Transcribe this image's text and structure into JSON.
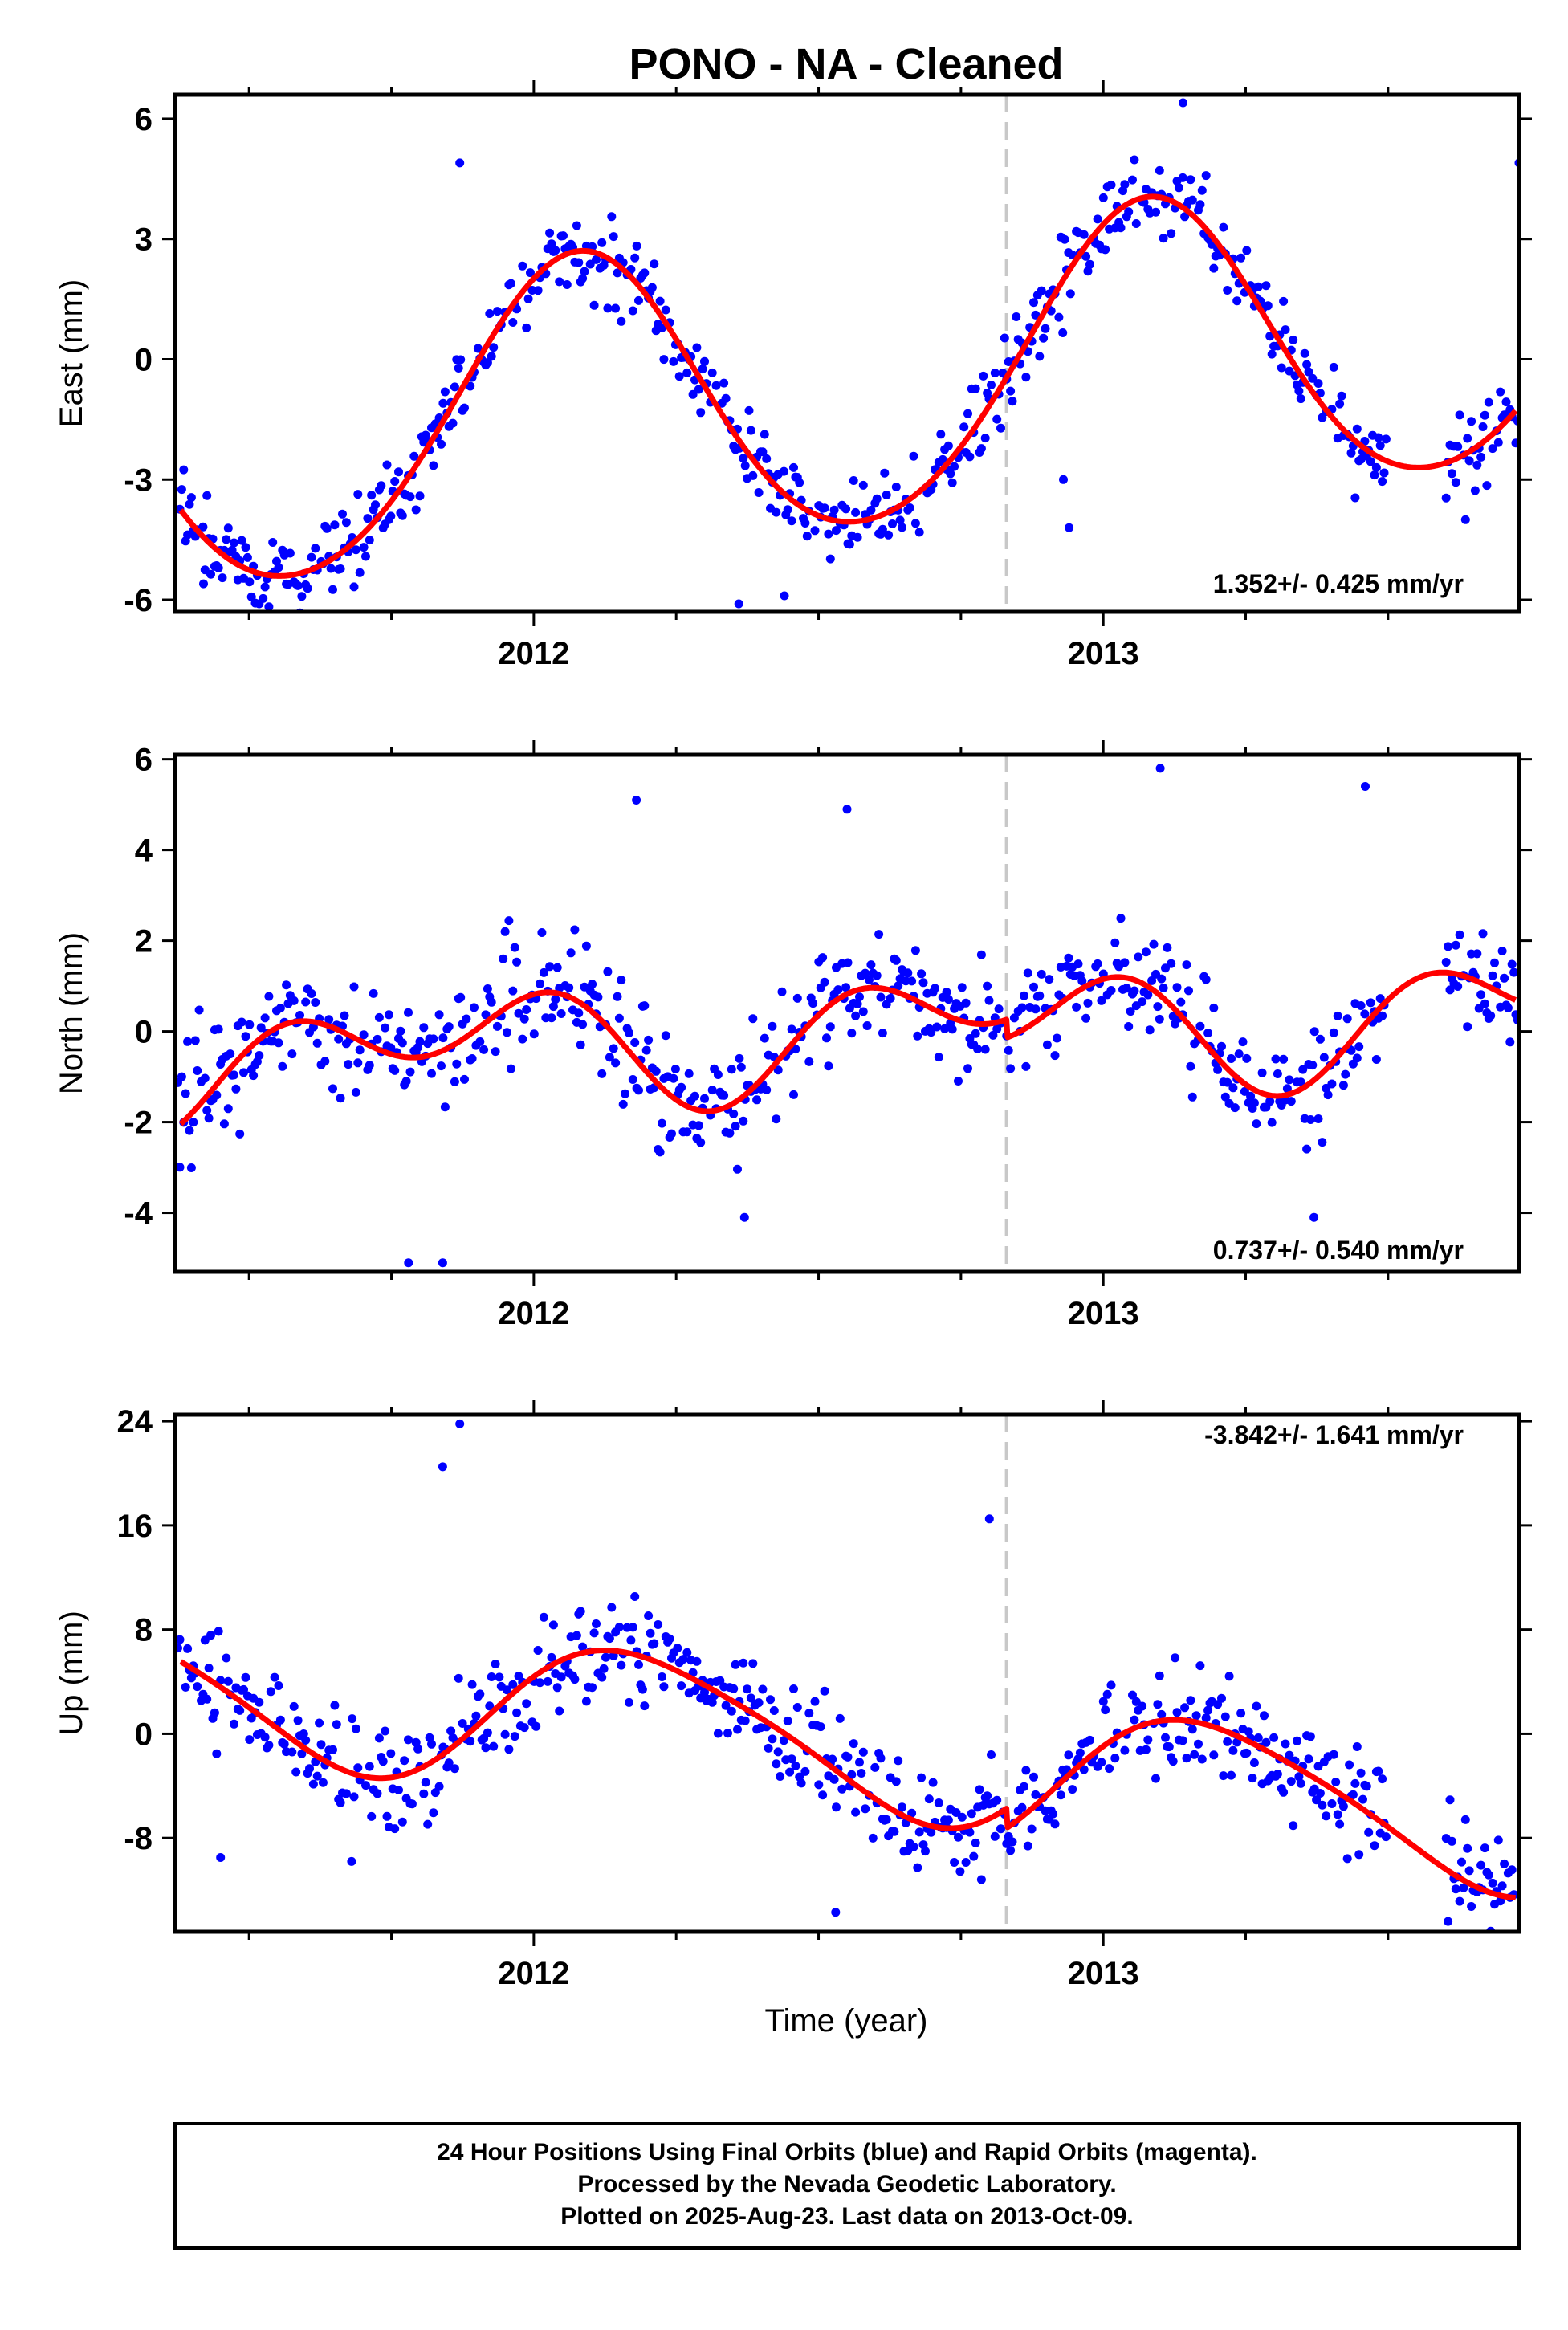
{
  "title": "PONO  - NA - Cleaned",
  "xlabel": "Time (year)",
  "footer": {
    "line1": "24 Hour Positions Using Final Orbits (blue) and Rapid Orbits (magenta).",
    "line2": "Processed by the Nevada Geodetic Laboratory.",
    "line3": "Plotted on 2025-Aug-23. Last data on 2013-Oct-09."
  },
  "colors": {
    "points": "#0000ff",
    "fit": "#ff0000",
    "break_line": "#c8c8c8"
  },
  "chart_data": [
    {
      "type": "scatter",
      "panel": "east",
      "ylabel": "East (mm)",
      "rate_text": "1.352+/- 0.425 mm/yr",
      "xlim": [
        2011.37,
        2013.73
      ],
      "ylim": [
        -6.3,
        6.6
      ],
      "yticks": [
        "6",
        "3",
        "0",
        "-3",
        "-6"
      ],
      "ytick_values": [
        6,
        3,
        0,
        -3,
        -6
      ],
      "xticks": [
        "2012",
        "2013"
      ],
      "xtick_values": [
        2012,
        2013
      ],
      "break_x": 2012.83,
      "fit": {
        "offset": -1.4,
        "rate": 1.352,
        "amp1": 3.7,
        "phase1": 1.1,
        "amp2": 0.3,
        "phase2": 0.4,
        "jump": 0
      },
      "noise": 0.9,
      "outliers": [
        [
          2011.87,
          4.9
        ],
        [
          2013.14,
          6.4
        ],
        [
          2013.73,
          4.9
        ],
        [
          2012.94,
          -4.2
        ],
        [
          2012.93,
          -3.0
        ],
        [
          2012.44,
          -5.9
        ],
        [
          2012.36,
          -6.1
        ],
        [
          2011.42,
          -5.6
        ]
      ]
    },
    {
      "type": "scatter",
      "panel": "north",
      "ylabel": "North (mm)",
      "rate_text": "0.737+/- 0.540 mm/yr",
      "xlim": [
        2011.37,
        2013.73
      ],
      "ylim": [
        -5.3,
        6.1
      ],
      "yticks": [
        "6",
        "4",
        "2",
        "0",
        "-2",
        "-4"
      ],
      "ytick_values": [
        6,
        4,
        2,
        0,
        -2,
        -4
      ],
      "xticks": [
        "2012",
        "2013"
      ],
      "xtick_values": [
        2012,
        2013
      ],
      "break_x": 2012.83,
      "fit": {
        "offset": -0.3,
        "rate": 0.737,
        "amp1": 0.8,
        "phase1": 2.6,
        "amp2": 0.9,
        "phase2": 0.9,
        "jump": -0.4
      },
      "noise": 1.1,
      "outliers": [
        [
          2012.18,
          5.1
        ],
        [
          2012.55,
          4.9
        ],
        [
          2013.1,
          5.8
        ],
        [
          2013.46,
          5.4
        ],
        [
          2011.78,
          -5.1
        ],
        [
          2011.84,
          -5.1
        ],
        [
          2013.37,
          -4.1
        ],
        [
          2012.37,
          -4.1
        ]
      ]
    },
    {
      "type": "scatter",
      "panel": "up",
      "ylabel": "Up (mm)",
      "rate_text": "-3.842+/- 1.641 mm/yr",
      "xlim": [
        2011.37,
        2013.73
      ],
      "ylim": [
        -15.2,
        24.5
      ],
      "yticks": [
        "24",
        "16",
        "8",
        "0",
        "-8"
      ],
      "ytick_values": [
        24,
        16,
        8,
        0,
        -8
      ],
      "xticks": [
        "2012",
        "2013"
      ],
      "xtick_values": [
        2012,
        2013
      ],
      "break_x": 2012.83,
      "fit": {
        "offset": 1.5,
        "rate": -3.842,
        "amp1": 5.5,
        "phase1": 0.4,
        "amp2": 0.8,
        "phase2": 1.2,
        "jump": -1.5
      },
      "noise": 3.5,
      "outliers": [
        [
          2011.87,
          23.8
        ],
        [
          2011.84,
          20.5
        ],
        [
          2012.53,
          -13.7
        ],
        [
          2011.45,
          -9.5
        ],
        [
          2011.68,
          -9.8
        ],
        [
          2012.8,
          16.5
        ]
      ]
    }
  ]
}
